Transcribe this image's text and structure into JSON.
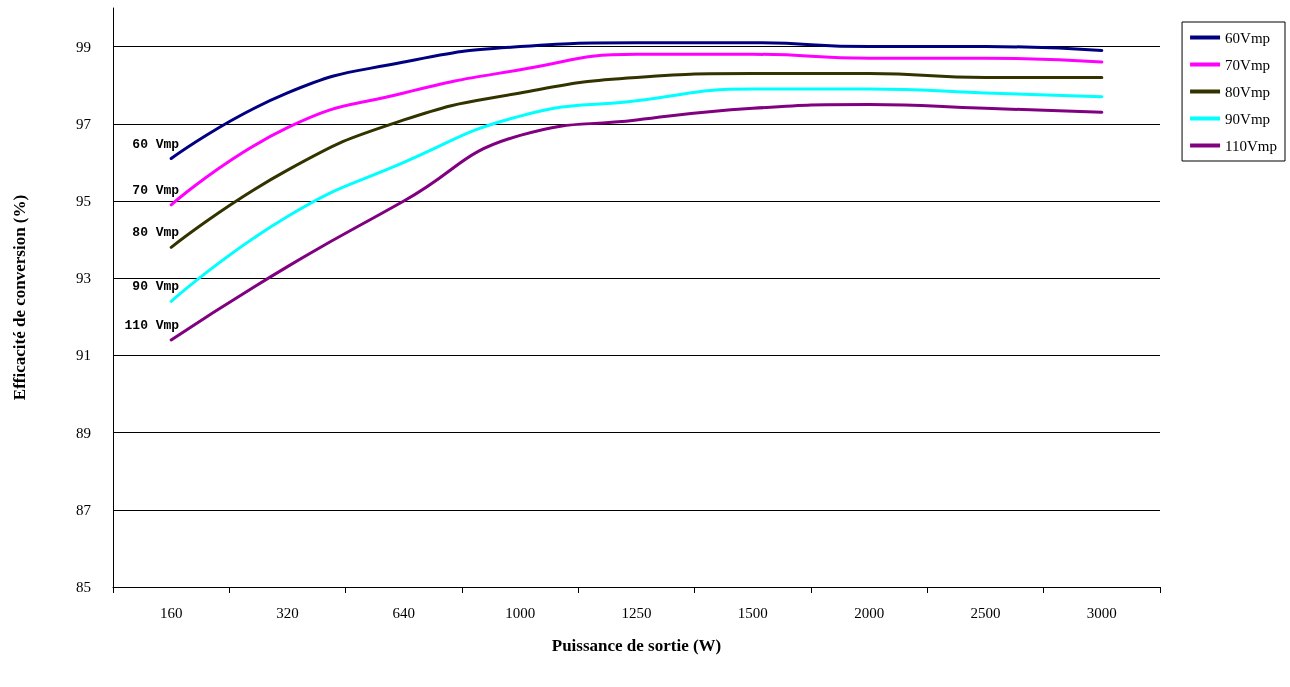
{
  "chart_data": {
    "type": "line",
    "xlabel": "Puissance de sortie (W)",
    "ylabel": "Efficacité de conversion (%)",
    "categories": [
      "160",
      "320",
      "640",
      "1000",
      "1250",
      "1500",
      "2000",
      "2500",
      "3000"
    ],
    "series": [
      {
        "name": "60Vmp",
        "color": "#000080",
        "values": [
          96.1,
          97.8,
          98.6,
          99.0,
          99.1,
          99.1,
          99.0,
          99.0,
          98.9
        ]
      },
      {
        "name": "70Vmp",
        "color": "#ff00ff",
        "values": [
          94.9,
          96.9,
          97.8,
          98.4,
          98.8,
          98.8,
          98.7,
          98.7,
          98.6
        ]
      },
      {
        "name": "80Vmp",
        "color": "#333300",
        "values": [
          93.8,
          95.8,
          97.1,
          97.8,
          98.2,
          98.3,
          98.3,
          98.2,
          98.2
        ]
      },
      {
        "name": "90Vmp",
        "color": "#00ffff",
        "values": [
          92.4,
          94.6,
          96.0,
          97.2,
          97.6,
          97.9,
          97.9,
          97.8,
          97.7
        ]
      },
      {
        "name": "110Vmp",
        "color": "#800080",
        "values": [
          91.4,
          93.3,
          95.0,
          96.7,
          97.1,
          97.4,
          97.5,
          97.4,
          97.3
        ]
      }
    ],
    "annotations": [
      {
        "text": "60 Vmp",
        "x": "160",
        "y": 96.1
      },
      {
        "text": "70 Vmp",
        "x": "160",
        "y": 94.9
      },
      {
        "text": "80 Vmp",
        "x": "160",
        "y": 93.8
      },
      {
        "text": "90 Vmp",
        "x": "160",
        "y": 92.4
      },
      {
        "text": "110 Vmp",
        "x": "160",
        "y": 91.4
      }
    ],
    "ylim": [
      85,
      100
    ],
    "yticks": [
      85,
      87,
      89,
      91,
      93,
      95,
      97,
      99
    ],
    "grid": "y",
    "legend": "top right",
    "marker": "none",
    "line_style": "solid"
  }
}
